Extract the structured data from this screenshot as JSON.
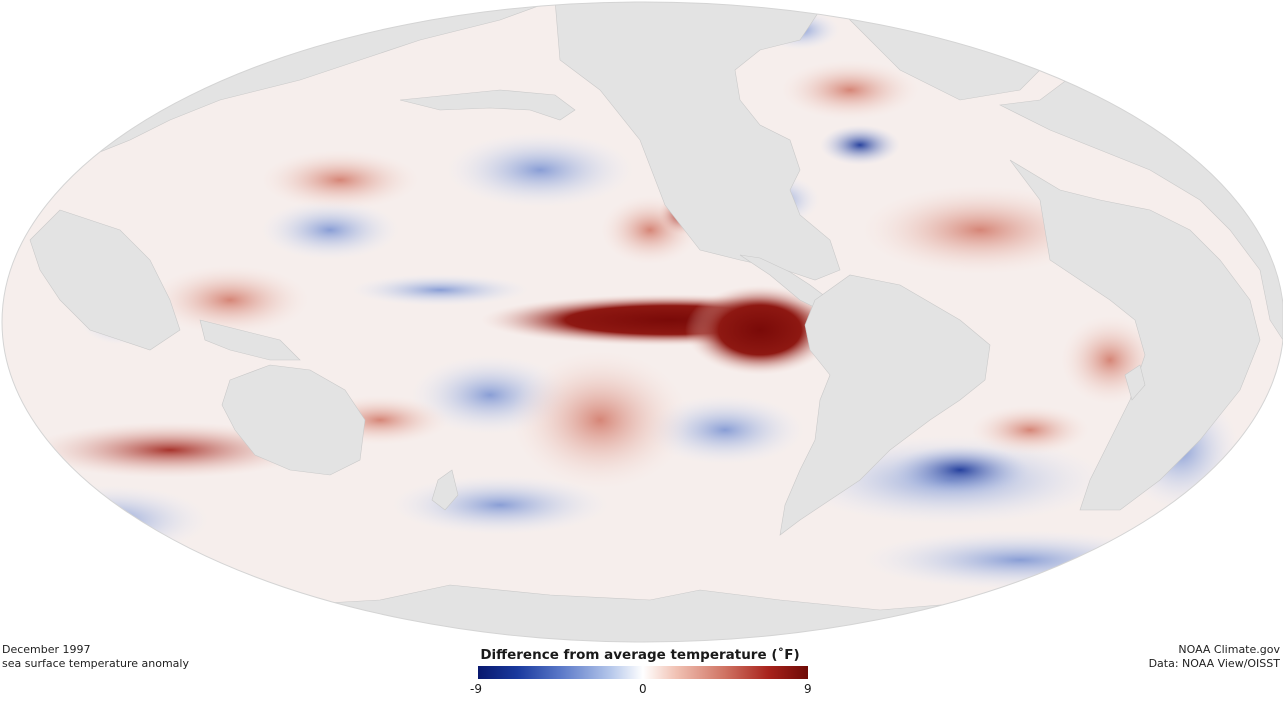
{
  "caption": {
    "date": "December 1997",
    "subtitle": "sea surface temperature anomaly"
  },
  "credit": {
    "source": "NOAA Climate.gov",
    "data": "Data: NOAA View/OISST"
  },
  "legend": {
    "title": "Difference from average temperature (˚F)",
    "min_label": "-9",
    "mid_label": "0",
    "max_label": "9"
  },
  "colors": {
    "land": "#e3e3e3",
    "strong_cool": "#08186e",
    "neutral": "#ffffff",
    "strong_warm": "#6e0a06"
  }
}
